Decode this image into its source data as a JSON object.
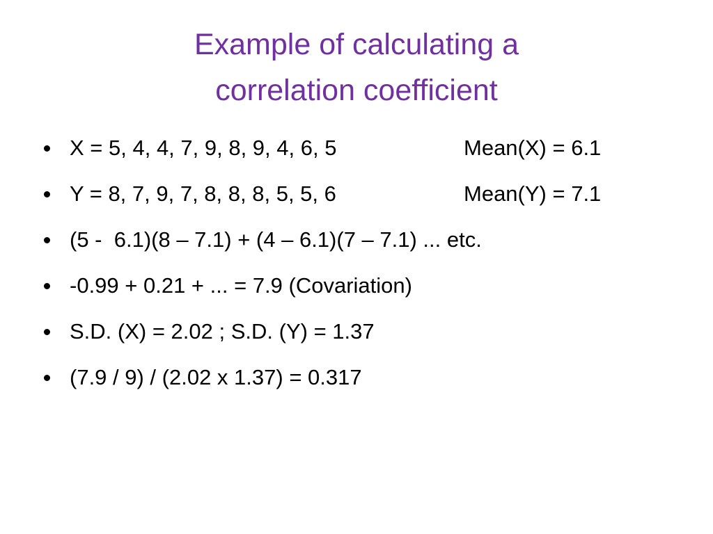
{
  "title": [
    "Example of calculating a",
    "correlation coefficient"
  ],
  "bullets": [
    {
      "text": "X = 5, 4, 4, 7, 9, 8, 9, 4, 6, 5",
      "aside": "Mean(X) = 6.1"
    },
    {
      "text": "Y = 8, 7, 9, 7, 8, 8, 8, 5, 5, 6",
      "aside": "Mean(Y) = 7.1"
    },
    {
      "text": "(5 -  6.1)(8 – 7.1) + (4 – 6.1)(7 – 7.1) ... etc."
    },
    {
      "text": "-0.99 + 0.21 + ... = 7.9 (Covariation)"
    },
    {
      "text": "S.D. (X) = 2.02 ; S.D. (Y) = 1.37"
    },
    {
      "text": "(7.9 / 9) / (2.02 x 1.37) = 0.317"
    }
  ]
}
